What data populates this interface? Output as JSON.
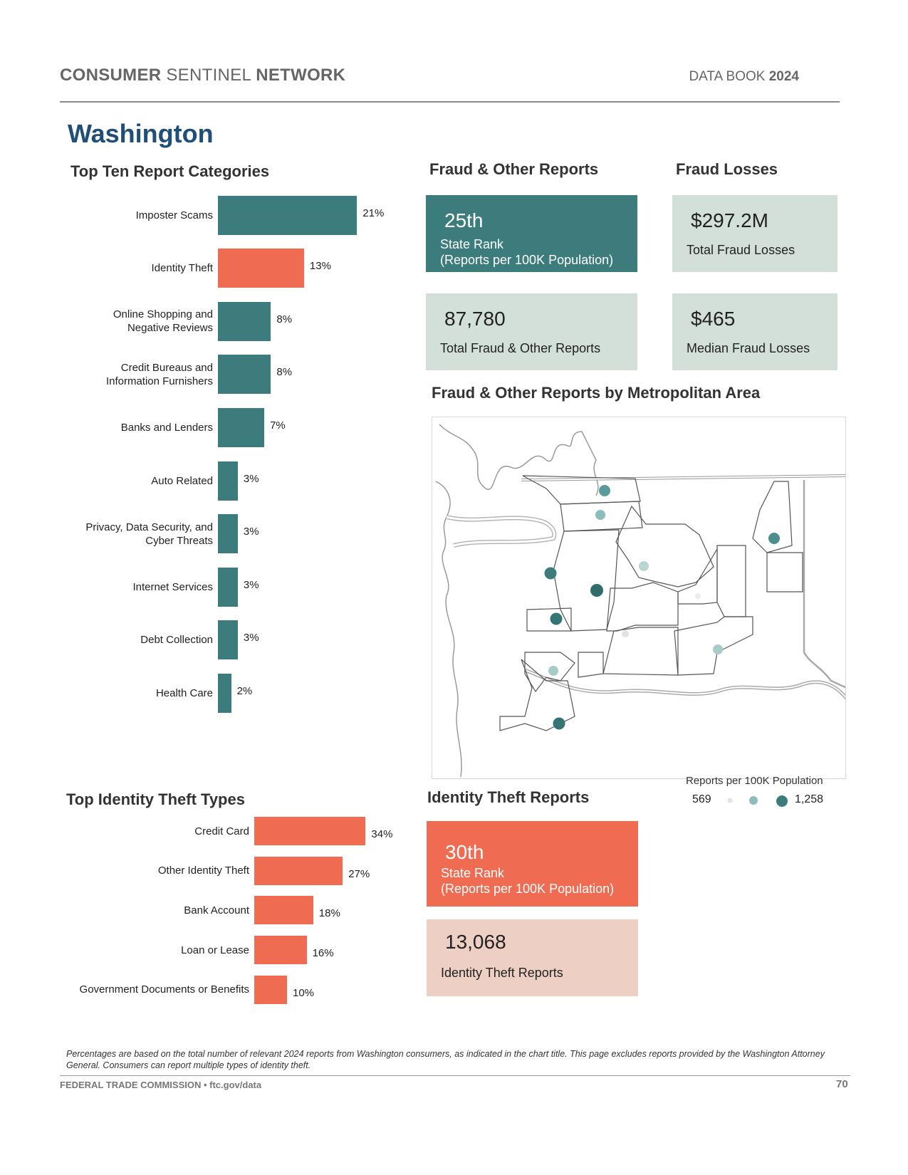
{
  "header": {
    "brand_bold1": "CONSUMER",
    "brand_light": "SENTINEL",
    "brand_bold2": "NETWORK",
    "book_label": "DATA BOOK",
    "book_year": "2024"
  },
  "state": "Washington",
  "colors": {
    "teal": "#3d7c7c",
    "orange": "#ef6c52",
    "mint": "#d3e0da",
    "peach": "#edd0c3",
    "title_blue": "#1f4e79"
  },
  "top_categories": {
    "title": "Top Ten Report Categories",
    "items": [
      {
        "label": [
          "Imposter Scams"
        ],
        "value": 21,
        "display": "21%",
        "highlight": false
      },
      {
        "label": [
          "Identity Theft"
        ],
        "value": 13,
        "display": "13%",
        "highlight": true
      },
      {
        "label": [
          "Online Shopping and",
          "Negative Reviews"
        ],
        "value": 8,
        "display": "8%",
        "highlight": false
      },
      {
        "label": [
          "Credit Bureaus and",
          "Information Furnishers"
        ],
        "value": 8,
        "display": "8%",
        "highlight": false
      },
      {
        "label": [
          "Banks and Lenders"
        ],
        "value": 7,
        "display": "7%",
        "highlight": false
      },
      {
        "label": [
          "Auto Related"
        ],
        "value": 3,
        "display": "3%",
        "highlight": false
      },
      {
        "label": [
          "Privacy, Data Security, and",
          "Cyber Threats"
        ],
        "value": 3,
        "display": "3%",
        "highlight": false
      },
      {
        "label": [
          "Internet Services"
        ],
        "value": 3,
        "display": "3%",
        "highlight": false
      },
      {
        "label": [
          "Debt Collection"
        ],
        "value": 3,
        "display": "3%",
        "highlight": false
      },
      {
        "label": [
          "Health Care"
        ],
        "value": 2,
        "display": "2%",
        "highlight": false
      }
    ]
  },
  "fraud_reports": {
    "title": "Fraud & Other Reports",
    "rank": "25th",
    "rank_label_1": "State Rank",
    "rank_label_2": "(Reports per 100K Population)",
    "total": "87,780",
    "total_label": "Total Fraud & Other Reports"
  },
  "fraud_losses": {
    "title": "Fraud Losses",
    "total": "$297.2M",
    "total_label": "Total Fraud Losses",
    "median": "$465",
    "median_label": "Median Fraud Losses"
  },
  "metro_map": {
    "title": "Fraud & Other Reports by Metropolitan Area",
    "legend_title": "Reports per 100K Population",
    "legend_min": "569",
    "legend_max": "1,258"
  },
  "identity_types": {
    "title": "Top Identity Theft Types",
    "items": [
      {
        "label": "Credit Card",
        "value": 34,
        "display": "34%"
      },
      {
        "label": "Other Identity Theft",
        "value": 27,
        "display": "27%"
      },
      {
        "label": "Bank Account",
        "value": 18,
        "display": "18%"
      },
      {
        "label": "Loan or Lease",
        "value": 16,
        "display": "16%"
      },
      {
        "label": "Government Documents or Benefits",
        "value": 10,
        "display": "10%"
      }
    ]
  },
  "identity_reports": {
    "title": "Identity Theft Reports",
    "rank": "30th",
    "rank_label_1": "State Rank",
    "rank_label_2": "(Reports per 100K Population)",
    "total": "13,068",
    "total_label": "Identity Theft Reports"
  },
  "footnote": "Percentages are based on the total number of relevant 2024 reports from Washington consumers, as indicated in the chart title.  This page excludes reports provided by the Washington Attorney General. Consumers can report multiple types of identity theft.",
  "footer": {
    "left": "FEDERAL TRADE COMMISSION • ftc.gov/data",
    "page": "70"
  }
}
